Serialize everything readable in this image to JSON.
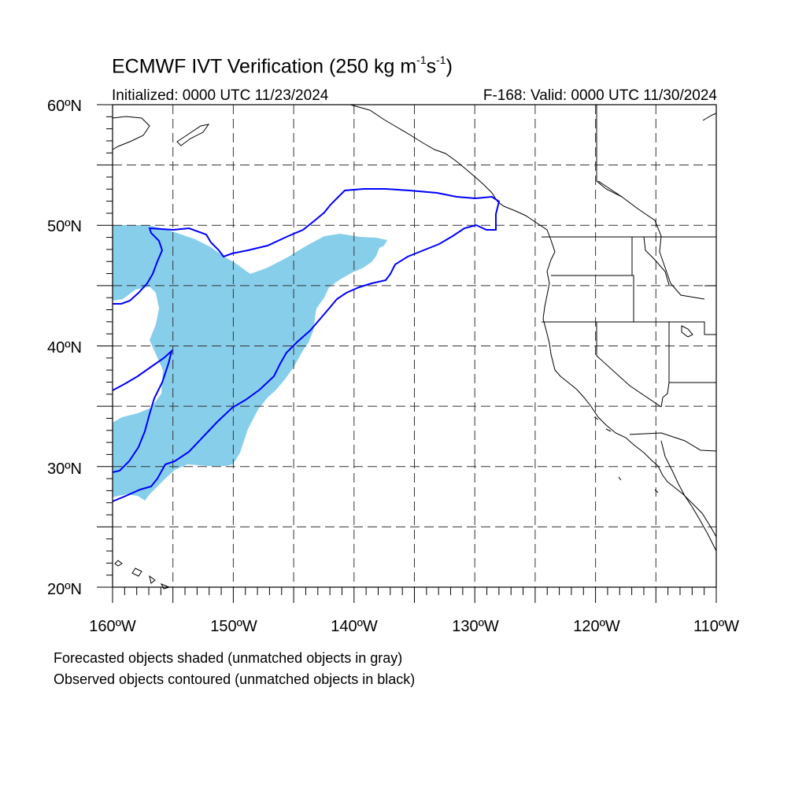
{
  "title": {
    "main": "ECMWF IVT Verification (250 kg m",
    "sup1": "-1",
    "mid": "s",
    "sup2": "-1",
    "end": ")"
  },
  "initialized": "Initialized: 0000 UTC 11/23/2024",
  "valid": "F-168: Valid: 0000 UTC 11/30/2024",
  "lat_labels": [
    "60ºN",
    "50ºN",
    "40ºN",
    "30ºN",
    "20ºN"
  ],
  "lon_labels": [
    "160ºW",
    "150ºW",
    "140ºW",
    "130ºW",
    "120ºW",
    "110ºW"
  ],
  "notes": [
    "Forecasted objects shaded (unmatched objects in gray)",
    "Observed objects contoured (unmatched objects in black)"
  ],
  "map": {
    "extent": {
      "lon_min": -160,
      "lon_max": -110,
      "lat_min": 20,
      "lat_max": 60
    },
    "grid_spacing_deg": 5,
    "colors": {
      "forecast_fill": "#87ceeb",
      "observed_contour": "#0000ff",
      "coastline": "#000000",
      "grid": "#333333"
    }
  }
}
